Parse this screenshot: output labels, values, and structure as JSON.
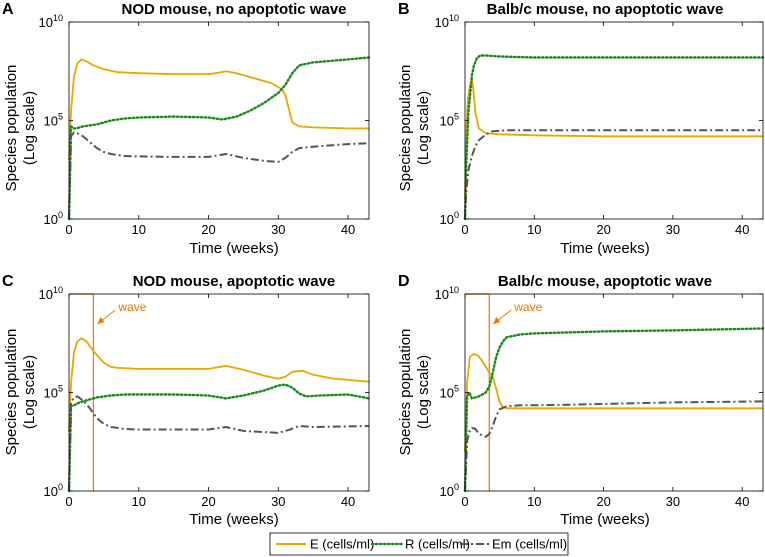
{
  "colors": {
    "E": "#E8A800",
    "R": "#1A8A1A",
    "Em": "#555555",
    "wave": "#E87A00",
    "axis": "#000000"
  },
  "legend": [
    {
      "key": "E",
      "label": "E (cells/ml)",
      "dash": "solid"
    },
    {
      "key": "R",
      "label": "R (cells/ml)",
      "dash": "dot"
    },
    {
      "key": "Em",
      "label": "Em (cells/ml)",
      "dash": "dashdot"
    }
  ],
  "chart_data": [
    {
      "type": "line",
      "panel_letter": "A",
      "title": "NOD mouse, no apoptotic wave",
      "xlabel": "Time (weeks)",
      "ylabel": [
        "Species population",
        "(Log scale)"
      ],
      "xlim": [
        0,
        43
      ],
      "ylim_log10": [
        0,
        10
      ],
      "xticks": [
        0,
        10,
        20,
        30,
        40
      ],
      "yticks": [
        {
          "base": "10",
          "exp": "0",
          "value": 0
        },
        {
          "base": "10",
          "exp": "5",
          "value": 5
        },
        {
          "base": "10",
          "exp": "10",
          "value": 10
        }
      ],
      "series": [
        {
          "name": "E",
          "x": [
            0,
            0.3,
            0.7,
            1.2,
            1.8,
            2.5,
            3.5,
            5,
            7,
            10,
            15,
            20,
            21,
            22.5,
            24,
            27,
            29,
            30.5,
            31,
            31.5,
            32,
            33,
            35,
            40,
            43
          ],
          "log10y": [
            3,
            5.5,
            7.2,
            7.9,
            8.1,
            8.0,
            7.8,
            7.6,
            7.45,
            7.4,
            7.35,
            7.35,
            7.4,
            7.5,
            7.4,
            7.1,
            6.9,
            6.6,
            6.3,
            5.6,
            4.9,
            4.7,
            4.65,
            4.6,
            4.6
          ]
        },
        {
          "name": "R",
          "x": [
            0,
            0.3,
            0.7,
            1,
            1.5,
            2,
            4,
            6,
            8,
            10,
            15,
            20,
            22,
            24,
            26,
            28,
            30,
            31,
            32,
            33,
            35,
            40,
            43
          ],
          "log10y": [
            0,
            4.7,
            4.6,
            4.6,
            4.65,
            4.7,
            4.8,
            5.0,
            5.1,
            5.15,
            5.2,
            5.15,
            5.05,
            5.2,
            5.5,
            5.9,
            6.4,
            6.8,
            7.4,
            7.8,
            7.95,
            8.1,
            8.2
          ]
        },
        {
          "name": "Em",
          "x": [
            0,
            0.3,
            0.7,
            1.2,
            2,
            3,
            4,
            5,
            6,
            8,
            10,
            15,
            20,
            22.5,
            25,
            28,
            30,
            31,
            32,
            33,
            36,
            40,
            43
          ],
          "log10y": [
            0,
            4.2,
            4.4,
            4.35,
            4.2,
            3.9,
            3.6,
            3.4,
            3.3,
            3.2,
            3.18,
            3.15,
            3.15,
            3.3,
            3.1,
            2.95,
            2.9,
            3.1,
            3.4,
            3.6,
            3.7,
            3.8,
            3.85
          ]
        }
      ]
    },
    {
      "type": "line",
      "panel_letter": "B",
      "title": "Balb/c mouse, no apoptotic wave",
      "xlabel": "Time (weeks)",
      "ylabel": [
        "Species population",
        "(Log scale)"
      ],
      "xlim": [
        0,
        43
      ],
      "ylim_log10": [
        0,
        10
      ],
      "xticks": [
        0,
        10,
        20,
        30,
        40
      ],
      "yticks": [
        {
          "base": "10",
          "exp": "0",
          "value": 0
        },
        {
          "base": "10",
          "exp": "5",
          "value": 5
        },
        {
          "base": "10",
          "exp": "10",
          "value": 10
        }
      ],
      "series": [
        {
          "name": "E",
          "x": [
            0,
            0.2,
            0.4,
            0.7,
            1.0,
            1.2,
            1.5,
            2,
            3,
            5,
            10,
            20,
            30,
            43
          ],
          "log10y": [
            1,
            4.5,
            6.0,
            6.8,
            7.1,
            6.6,
            5.4,
            4.6,
            4.35,
            4.3,
            4.25,
            4.2,
            4.2,
            4.2
          ]
        },
        {
          "name": "R",
          "x": [
            0,
            0.2,
            0.5,
            0.8,
            1.0,
            1.3,
            1.7,
            2.2,
            3,
            5,
            10,
            20,
            30,
            43
          ],
          "log10y": [
            0,
            3,
            5.5,
            6.5,
            7.3,
            7.8,
            8.15,
            8.3,
            8.3,
            8.25,
            8.2,
            8.2,
            8.2,
            8.2
          ]
        },
        {
          "name": "Em",
          "x": [
            0,
            0.2,
            0.5,
            1,
            1.5,
            2,
            3,
            4,
            6,
            10,
            20,
            30,
            43
          ],
          "log10y": [
            0,
            1.5,
            2.5,
            3.2,
            3.7,
            4.0,
            4.3,
            4.45,
            4.5,
            4.5,
            4.5,
            4.5,
            4.5
          ]
        }
      ]
    },
    {
      "type": "line",
      "panel_letter": "C",
      "title": "NOD mouse, apoptotic wave",
      "xlabel": "Time (weeks)",
      "ylabel": [
        "Species population",
        "(Log scale)"
      ],
      "xlim": [
        0,
        43
      ],
      "ylim_log10": [
        0,
        10
      ],
      "xticks": [
        0,
        10,
        20,
        30,
        40
      ],
      "yticks": [
        {
          "base": "10",
          "exp": "0",
          "value": 0
        },
        {
          "base": "10",
          "exp": "5",
          "value": 5
        },
        {
          "base": "10",
          "exp": "10",
          "value": 10
        }
      ],
      "annotation": {
        "text": "wave",
        "wave_start": 0.0,
        "wave_end": 3.5
      },
      "series": [
        {
          "name": "E",
          "x": [
            0,
            0.3,
            0.7,
            1.2,
            1.8,
            2.5,
            3.5,
            5,
            6,
            7,
            10,
            15,
            20,
            22.5,
            25,
            28,
            30,
            31,
            32,
            33.5,
            35,
            38,
            43
          ],
          "log10y": [
            3,
            5.5,
            7.0,
            7.6,
            7.75,
            7.6,
            7.1,
            6.5,
            6.3,
            6.25,
            6.2,
            6.2,
            6.2,
            6.35,
            6.15,
            5.85,
            5.7,
            5.8,
            6.05,
            6.1,
            5.9,
            5.7,
            5.55
          ]
        },
        {
          "name": "R",
          "x": [
            0,
            0.3,
            0.7,
            1,
            1.5,
            2,
            4,
            6,
            8,
            10,
            15,
            20,
            22.5,
            25,
            28,
            30,
            31,
            32,
            33,
            34,
            36,
            40,
            43
          ],
          "log10y": [
            0,
            4.3,
            4.35,
            4.4,
            4.5,
            4.55,
            4.75,
            4.85,
            4.9,
            4.9,
            4.9,
            4.85,
            4.7,
            4.85,
            5.1,
            5.35,
            5.4,
            5.25,
            4.95,
            4.8,
            4.85,
            4.9,
            4.7
          ]
        },
        {
          "name": "Em",
          "x": [
            0,
            0.3,
            0.7,
            1.2,
            2,
            3,
            4,
            5,
            6,
            8,
            10,
            15,
            20,
            22.5,
            25,
            30,
            31.5,
            33,
            35,
            40,
            43
          ],
          "log10y": [
            0,
            4.5,
            4.75,
            4.8,
            4.6,
            4.2,
            3.7,
            3.4,
            3.25,
            3.15,
            3.12,
            3.12,
            3.12,
            3.25,
            3.05,
            2.95,
            3.1,
            3.3,
            3.25,
            3.28,
            3.3
          ]
        }
      ]
    },
    {
      "type": "line",
      "panel_letter": "D",
      "title": "Balb/c mouse, apoptotic wave",
      "xlabel": "Time (weeks)",
      "ylabel": [
        "Species population",
        "(Log scale)"
      ],
      "xlim": [
        0,
        43
      ],
      "ylim_log10": [
        0,
        10
      ],
      "xticks": [
        0,
        10,
        20,
        30,
        40
      ],
      "yticks": [
        {
          "base": "10",
          "exp": "0",
          "value": 0
        },
        {
          "base": "10",
          "exp": "5",
          "value": 5
        },
        {
          "base": "10",
          "exp": "10",
          "value": 10
        }
      ],
      "annotation": {
        "text": "wave",
        "wave_start": 0.0,
        "wave_end": 3.5
      },
      "series": [
        {
          "name": "E",
          "x": [
            0,
            0.3,
            0.7,
            1.2,
            1.8,
            2.5,
            3.5,
            4.0,
            4.5,
            5.0,
            5.5,
            6,
            8,
            10,
            20,
            30,
            43
          ],
          "log10y": [
            2,
            5.5,
            6.8,
            6.95,
            6.9,
            6.6,
            6.0,
            5.8,
            5.2,
            4.5,
            4.25,
            4.2,
            4.2,
            4.2,
            4.2,
            4.2,
            4.2
          ]
        },
        {
          "name": "R",
          "x": [
            0,
            0.3,
            0.6,
            1.0,
            1.5,
            2,
            3,
            3.5,
            4,
            4.5,
            5,
            5.5,
            6,
            8,
            10,
            15,
            20,
            30,
            43
          ],
          "log10y": [
            0,
            4.8,
            5.0,
            4.7,
            4.75,
            4.8,
            5.0,
            5.3,
            6.0,
            6.8,
            7.3,
            7.6,
            7.8,
            7.95,
            8.0,
            8.05,
            8.1,
            8.15,
            8.25
          ]
        },
        {
          "name": "Em",
          "x": [
            0,
            0.3,
            0.6,
            1.0,
            1.5,
            2,
            3,
            3.5,
            4,
            4.5,
            5,
            6,
            8,
            10,
            15,
            20,
            30,
            43
          ],
          "log10y": [
            0,
            2.5,
            3.0,
            3.2,
            3.15,
            2.9,
            2.75,
            2.9,
            3.3,
            3.8,
            4.15,
            4.3,
            4.35,
            4.35,
            4.38,
            4.42,
            4.5,
            4.55
          ]
        }
      ]
    }
  ]
}
